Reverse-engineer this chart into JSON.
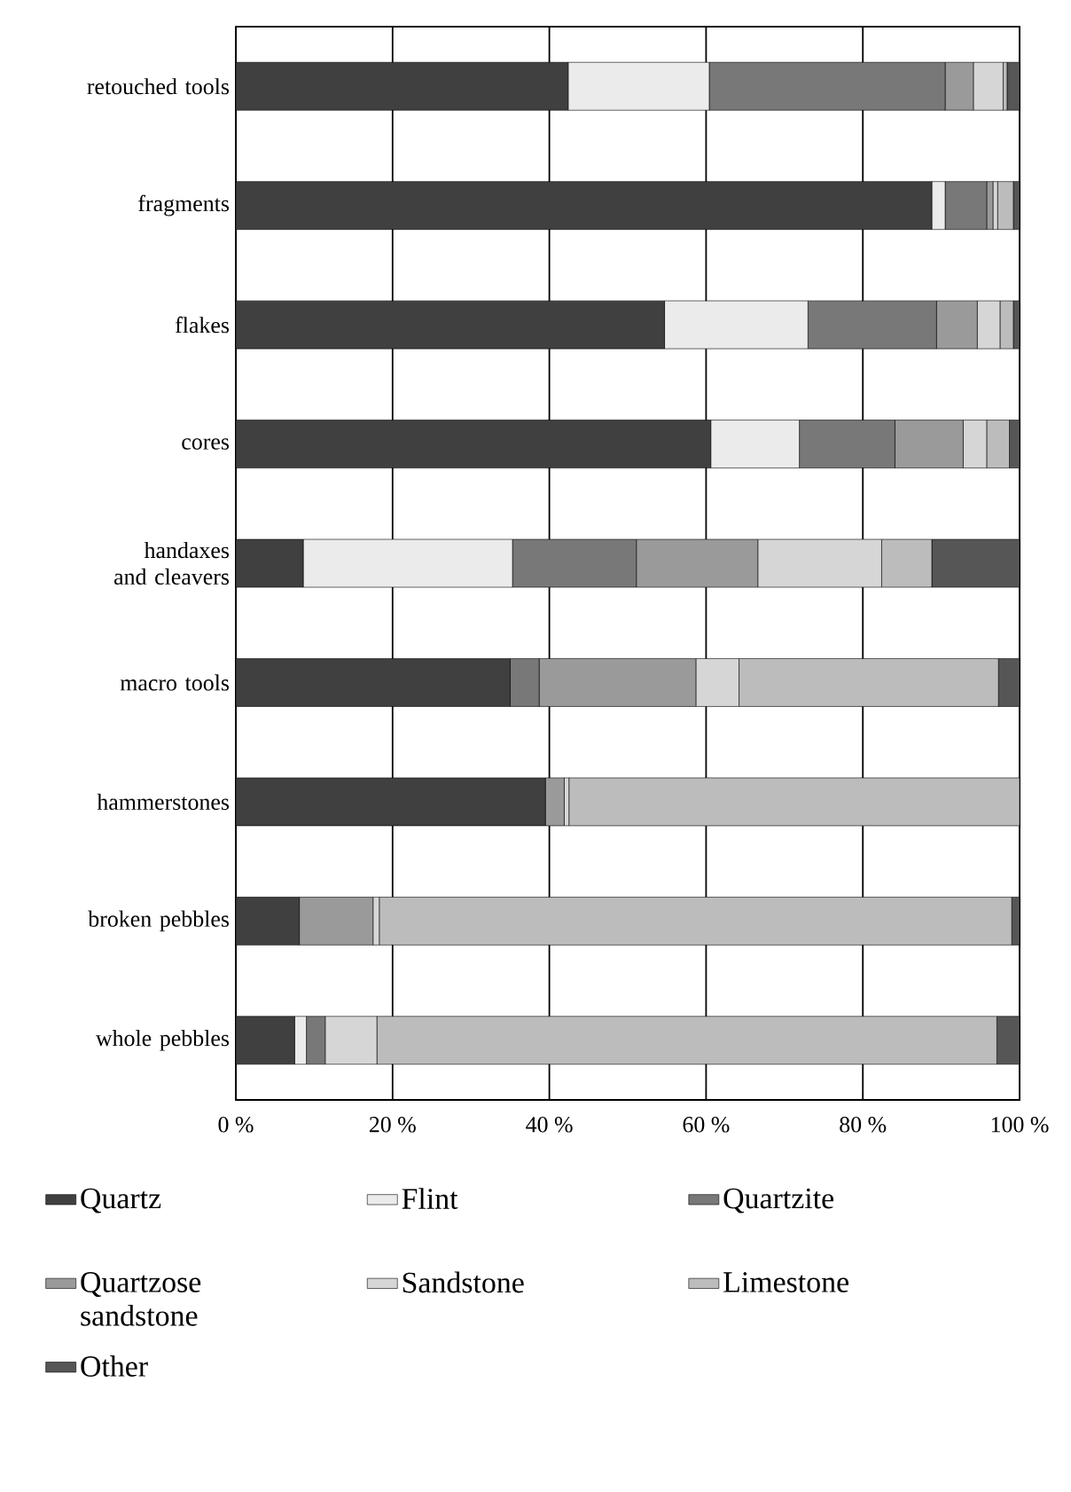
{
  "chart_data": {
    "type": "bar",
    "orientation": "horizontal",
    "stacked": true,
    "categories": [
      "retouched tools",
      "fragments",
      "flakes",
      "cores",
      "handaxes and cleavers",
      "macro tools",
      "hammerstones",
      "broken pebbles",
      "whole pebbles"
    ],
    "series": [
      {
        "name": "Quartz",
        "color": "#404040",
        "values": [
          42.4,
          88.8,
          54.7,
          60.6,
          8.6,
          35.0,
          39.5,
          8.1,
          7.5
        ]
      },
      {
        "name": "Flint",
        "color": "#ebebeb",
        "values": [
          18.0,
          1.7,
          18.3,
          11.3,
          26.7,
          0,
          0,
          0,
          1.5
        ]
      },
      {
        "name": "Quartzite",
        "color": "#787878",
        "values": [
          30.1,
          5.3,
          16.4,
          12.2,
          15.8,
          3.7,
          0,
          0,
          2.4
        ]
      },
      {
        "name": "Quartzose sandstone",
        "color": "#9a9a9a",
        "values": [
          3.6,
          0.8,
          5.2,
          8.7,
          15.5,
          20.0,
          2.4,
          9.4,
          0
        ]
      },
      {
        "name": "Sandstone",
        "color": "#d6d6d6",
        "values": [
          3.8,
          0.6,
          2.9,
          3.0,
          15.8,
          5.5,
          0.6,
          0.8,
          6.6
        ]
      },
      {
        "name": "Limestone",
        "color": "#bcbcbc",
        "values": [
          0.5,
          2.0,
          1.7,
          2.9,
          6.4,
          33.1,
          57.5,
          80.7,
          79.1
        ]
      },
      {
        "name": "Other",
        "color": "#565656",
        "values": [
          1.6,
          0.8,
          0.8,
          1.3,
          11.2,
          2.7,
          0,
          1.0,
          2.9
        ]
      }
    ],
    "xlim": [
      0,
      100
    ],
    "xticks": [
      {
        "value": 0,
        "label": "0 %"
      },
      {
        "value": 20,
        "label": "20 %"
      },
      {
        "value": 40,
        "label": "40 %"
      },
      {
        "value": 60,
        "label": "60 %"
      },
      {
        "value": 80,
        "label": "80 %"
      },
      {
        "value": 100,
        "label": "100 %"
      }
    ],
    "grid": "x",
    "legend": "bottom"
  }
}
